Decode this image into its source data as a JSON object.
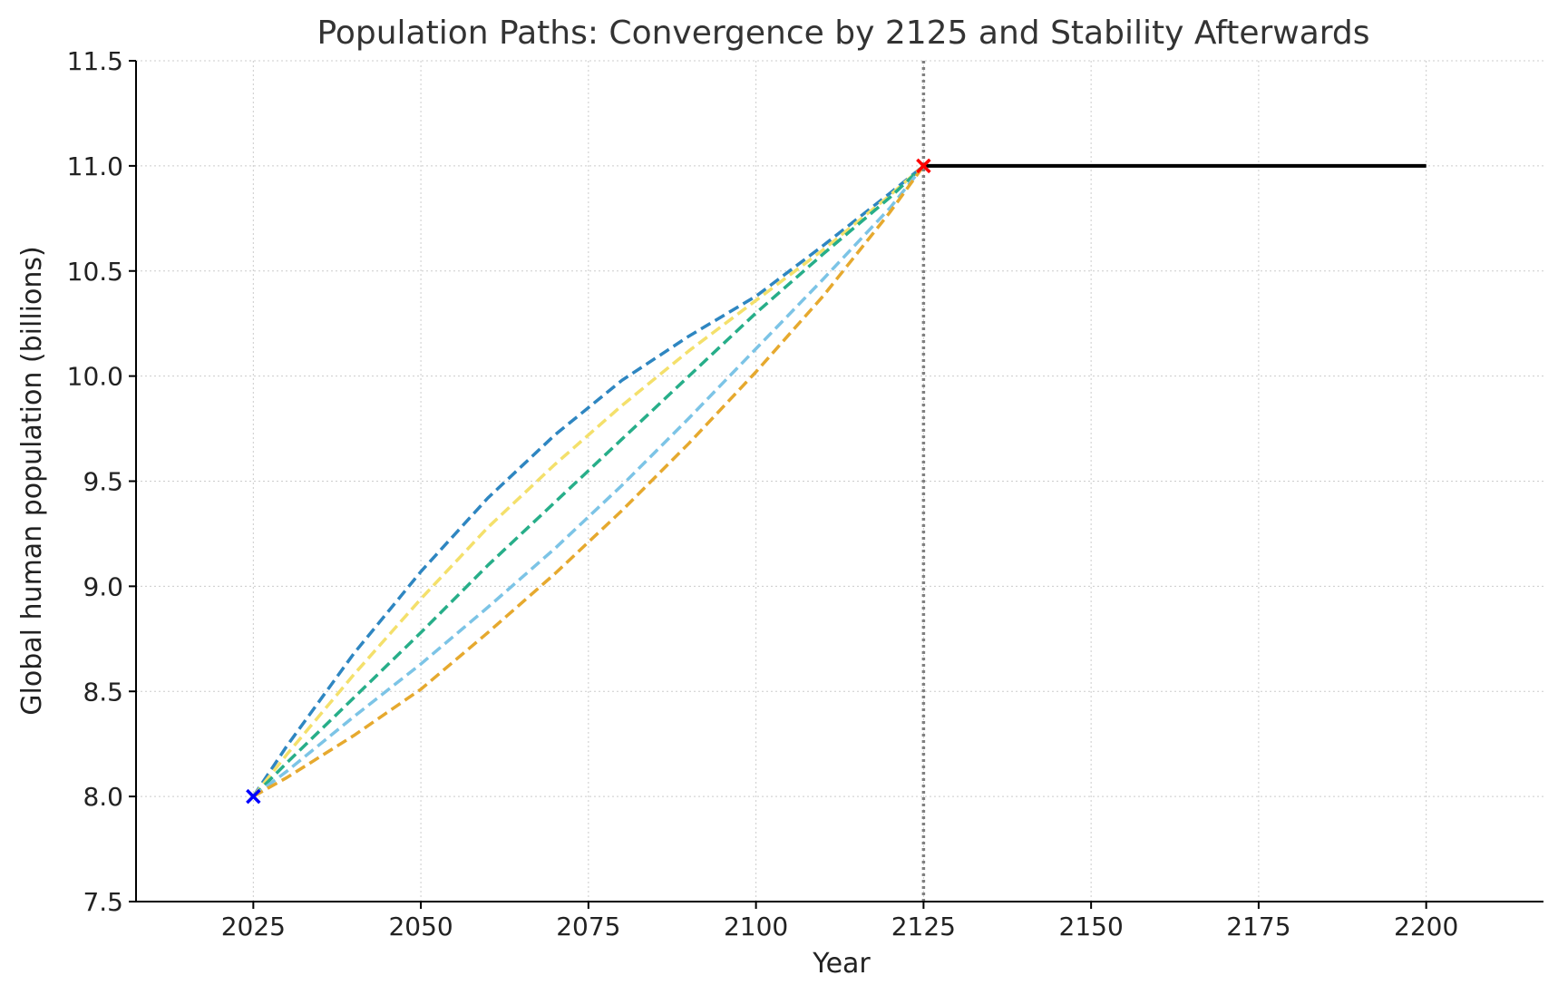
{
  "chart_data": {
    "type": "line",
    "title": "Population Paths: Convergence by 2125 and Stability Afterwards",
    "xlabel": "Year",
    "ylabel": "Global human population (billions)",
    "xlim": [
      2007.5,
      2217.5
    ],
    "ylim": [
      7.5,
      11.5
    ],
    "xticks": [
      2025,
      2050,
      2075,
      2100,
      2125,
      2150,
      2175,
      2200
    ],
    "xtick_labels": [
      "2025",
      "2050",
      "2075",
      "2100",
      "2125",
      "2150",
      "2175",
      "2200"
    ],
    "yticks": [
      7.5,
      8.0,
      8.5,
      9.0,
      9.5,
      10.0,
      10.5,
      11.0,
      11.5
    ],
    "ytick_labels": [
      "7.5",
      "8.0",
      "8.5",
      "9.0",
      "9.5",
      "10.0",
      "10.5",
      "11.0",
      "11.5"
    ],
    "grid": true,
    "series": [
      {
        "style": "dashed",
        "color": "#2E86C1",
        "x": [
          2025,
          2030,
          2040,
          2050,
          2060,
          2070,
          2080,
          2090,
          2100,
          2110,
          2120,
          2125
        ],
        "y": [
          8.0,
          8.24,
          8.68,
          9.07,
          9.42,
          9.72,
          9.98,
          10.19,
          10.38,
          10.62,
          10.87,
          11.0
        ]
      },
      {
        "style": "dashed",
        "color": "#F4E06B",
        "x": [
          2025,
          2030,
          2040,
          2050,
          2060,
          2070,
          2080,
          2090,
          2100,
          2110,
          2120,
          2125
        ],
        "y": [
          8.0,
          8.2,
          8.58,
          8.94,
          9.28,
          9.58,
          9.86,
          10.12,
          10.36,
          10.6,
          10.86,
          11.0
        ]
      },
      {
        "style": "dashed",
        "color": "#27AE89",
        "x": [
          2025,
          2030,
          2040,
          2050,
          2060,
          2070,
          2080,
          2090,
          2100,
          2110,
          2120,
          2125
        ],
        "y": [
          8.0,
          8.16,
          8.47,
          8.78,
          9.1,
          9.4,
          9.7,
          10.0,
          10.3,
          10.58,
          10.85,
          11.0
        ]
      },
      {
        "style": "dashed",
        "color": "#7CC4E6",
        "x": [
          2025,
          2030,
          2040,
          2050,
          2060,
          2070,
          2080,
          2090,
          2100,
          2110,
          2120,
          2125
        ],
        "y": [
          8.0,
          8.12,
          8.38,
          8.63,
          8.9,
          9.18,
          9.48,
          9.8,
          10.13,
          10.46,
          10.8,
          11.0
        ]
      },
      {
        "style": "dashed",
        "color": "#E6A92E",
        "x": [
          2025,
          2030,
          2040,
          2050,
          2060,
          2070,
          2080,
          2090,
          2100,
          2110,
          2120,
          2125
        ],
        "y": [
          8.0,
          8.09,
          8.29,
          8.51,
          8.78,
          9.06,
          9.36,
          9.68,
          10.02,
          10.38,
          10.78,
          11.0
        ]
      },
      {
        "style": "solid",
        "color": "#000000",
        "x": [
          2125,
          2200
        ],
        "y": [
          11.0,
          11.0
        ]
      }
    ],
    "markers": [
      {
        "x": 2025,
        "y": 8.0,
        "shape": "x",
        "color": "#0000FF"
      },
      {
        "x": 2125,
        "y": 11.0,
        "shape": "x",
        "color": "#FF0000"
      }
    ],
    "vlines": [
      {
        "x": 2125,
        "style": "dotted",
        "color": "#808080"
      }
    ]
  }
}
